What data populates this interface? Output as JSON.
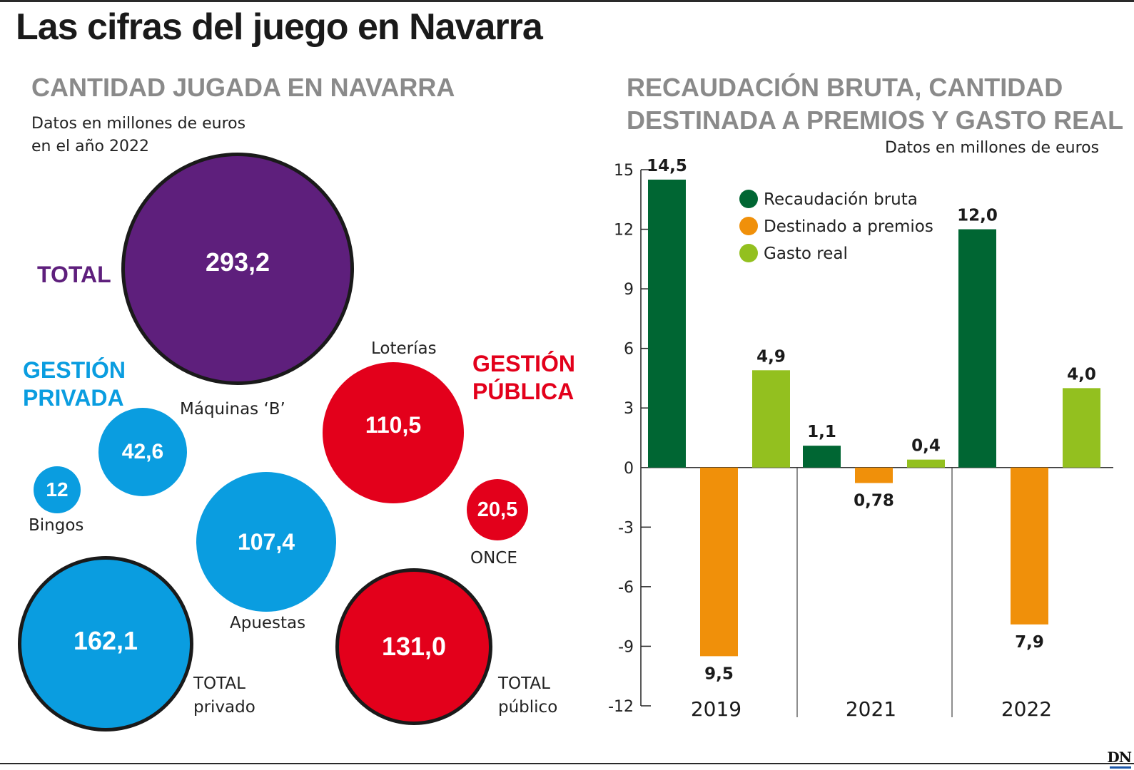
{
  "title": "Las cifras del juego en Navarra",
  "left_panel": {
    "heading": "CANTIDAD JUGADA EN NAVARRA",
    "note_line1": "Datos en millones de euros",
    "note_line2": "en el año 2022",
    "total_label": "TOTAL",
    "private_label_line1": "GESTIÓN",
    "private_label_line2": "PRIVADA",
    "public_label_line1": "GESTIÓN",
    "public_label_line2": "PÚBLICA",
    "bubbles": {
      "total": {
        "value": "293,2"
      },
      "maquinas": {
        "label": "Máquinas ‘B’",
        "value": "42,6"
      },
      "bingos": {
        "label": "Bingos",
        "value": "12"
      },
      "apuestas": {
        "label": "Apuestas",
        "value": "107,4"
      },
      "total_privado": {
        "label_line1": "TOTAL",
        "label_line2": "privado",
        "value": "162,1"
      },
      "loterias": {
        "label": "Loterías",
        "value": "110,5"
      },
      "once": {
        "label": "ONCE",
        "value": "20,5"
      },
      "total_publico": {
        "label_line1": "TOTAL",
        "label_line2": "público",
        "value": "131,0"
      }
    },
    "colors": {
      "total": "#5e1f7c",
      "private": "#0a9de0",
      "public": "#e3001b"
    }
  },
  "right_panel": {
    "heading_line1": "RECAUDACIÓN BRUTA, CANTIDAD",
    "heading_line2": "DESTINADA A PREMIOS Y GASTO REAL",
    "note": "Datos en millones de euros"
  },
  "chart_data": {
    "type": "bar",
    "categories": [
      "2019",
      "2021",
      "2022"
    ],
    "series": [
      {
        "name": "Recaudación bruta",
        "color": "#006633",
        "values": [
          14.5,
          1.1,
          12.0
        ],
        "labels": [
          "14,5",
          "1,1",
          "12,0"
        ]
      },
      {
        "name": "Destinado a premios",
        "color": "#f0900a",
        "values": [
          -9.5,
          -0.78,
          -7.9
        ],
        "labels": [
          "9,5",
          "0,78",
          "7,9"
        ]
      },
      {
        "name": "Gasto real",
        "color": "#93c01f",
        "values": [
          4.9,
          0.4,
          4.0
        ],
        "labels": [
          "4,9",
          "0,4",
          "4,0"
        ]
      }
    ],
    "ylim": [
      -12,
      15
    ],
    "yticks": [
      15,
      12,
      9,
      6,
      3,
      0,
      -3,
      -6,
      -9,
      -12
    ],
    "legend_position": "top-center",
    "grid": false
  },
  "logo_text": "DN"
}
